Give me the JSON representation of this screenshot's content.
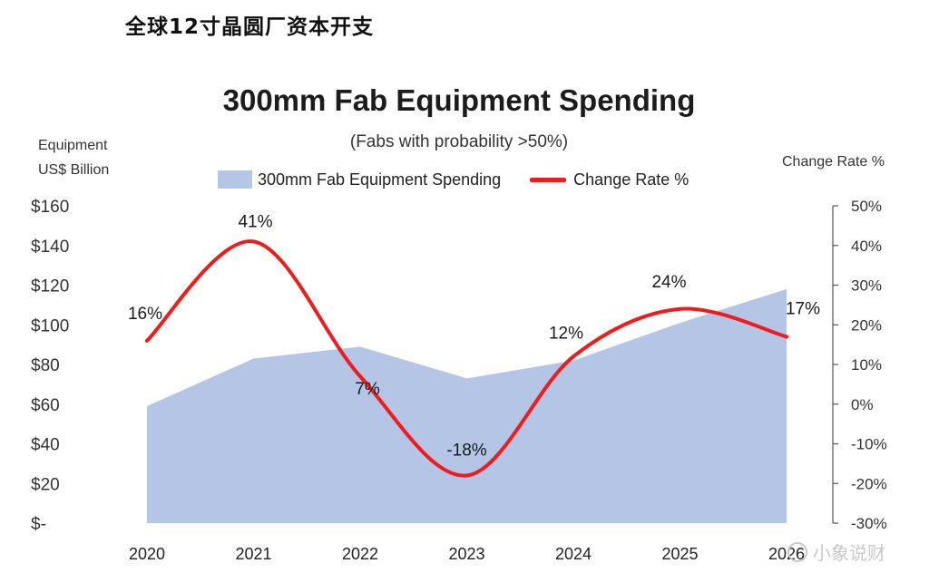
{
  "page": {
    "heading": "全球12寸晶圆厂资本开支",
    "watermark": "小象说财"
  },
  "chart_data": {
    "type": "area",
    "title": "300mm Fab Equipment Spending",
    "subtitle": "(Fabs with probability >50%)",
    "ylabel_left": [
      "Equipment",
      "US$ Billion"
    ],
    "ylabel_right": "Change Rate %",
    "categories": [
      "2020",
      "2021",
      "2022",
      "2023",
      "2024",
      "2025",
      "2026"
    ],
    "series": [
      {
        "name": "300mm Fab Equipment Spending",
        "type": "area",
        "axis": "left",
        "color": "#b4c5e6",
        "values": [
          59,
          83,
          89,
          73,
          82,
          101,
          118
        ]
      },
      {
        "name": "Change Rate %",
        "type": "line",
        "axis": "right",
        "color": "#ee1c1c",
        "values": [
          16,
          41,
          7,
          -18,
          12,
          24,
          17
        ],
        "labels": [
          "16%",
          "41%",
          "7%",
          "-18%",
          "12%",
          "24%",
          "17%"
        ]
      }
    ],
    "ylim_left": [
      0,
      160
    ],
    "yticks_left": [
      "$-",
      "$20",
      "$40",
      "$60",
      "$80",
      "$100",
      "$120",
      "$140",
      "$160"
    ],
    "ylim_right": [
      -30,
      50
    ],
    "yticks_right": [
      "-30%",
      "-20%",
      "-10%",
      "0%",
      "10%",
      "20%",
      "30%",
      "40%",
      "50%"
    ],
    "legend": "top",
    "grid": false
  }
}
